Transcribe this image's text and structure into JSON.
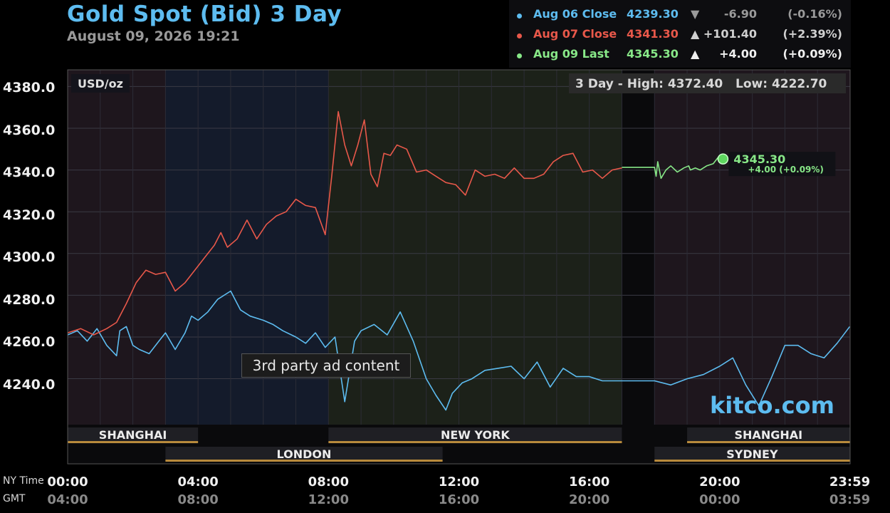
{
  "header": {
    "title": "Gold Spot (Bid) 3 Day",
    "datetime": "August 09, 2026 19:21"
  },
  "legend": [
    {
      "label": "Aug 06 Close",
      "value": "4239.30",
      "arrow": "▼",
      "change": "-6.90",
      "pct": "(-0.16%)",
      "color": "#5dbcf0"
    },
    {
      "label": "Aug 07 Close",
      "value": "4341.30",
      "arrow": "▲",
      "change": "+101.40",
      "pct": "(+2.39%)",
      "color": "#e8584a"
    },
    {
      "label": "Aug 09 Last",
      "value": "4345.30",
      "arrow": "▲",
      "change": "+4.00",
      "pct": "(+0.09%)",
      "color": "#88e888"
    }
  ],
  "overlays": {
    "unit": "USD/oz",
    "hilo": "3 Day - High: 4372.40   Low: 4222.70",
    "last_price": "4345.30",
    "last_change": "+4.00 (+0.09%)",
    "ad_text": "3rd party ad content",
    "watermark": "kitco.com"
  },
  "axis": {
    "ny_label": "NY Time",
    "gmt_label": "GMT",
    "ny_ticks": [
      "00:00",
      "04:00",
      "08:00",
      "12:00",
      "16:00",
      "20:00",
      "23:59"
    ],
    "gmt_ticks": [
      "04:00",
      "08:00",
      "12:00",
      "16:00",
      "20:00",
      "00:00",
      "03:59"
    ],
    "y_ticks": [
      "4380.0",
      "4360.0",
      "4340.0",
      "4320.0",
      "4300.0",
      "4280.0",
      "4260.0",
      "4240.0"
    ]
  },
  "sessions": {
    "top": [
      {
        "name": "SHANGHAI",
        "start": 0.0,
        "end": 4.0
      },
      {
        "name": "NEW YORK",
        "start": 8.0,
        "end": 17.0
      },
      {
        "name": "SHANGHAI",
        "start": 19.0,
        "end": 23.99
      }
    ],
    "bottom": [
      {
        "name": "LONDON",
        "start": 3.0,
        "end": 11.5
      },
      {
        "name": "SYDNEY",
        "start": 18.0,
        "end": 23.99
      }
    ]
  },
  "chart_data": {
    "type": "line",
    "title": "Gold Spot (Bid) 3 Day",
    "xlabel": "NY Time",
    "ylabel": "USD/oz",
    "ylim": [
      4218,
      4388
    ],
    "xlim": [
      0,
      24
    ],
    "grid": true,
    "series": [
      {
        "name": "Aug 06",
        "color": "#5dbcf0",
        "x": [
          0,
          0.3,
          0.6,
          0.9,
          1.2,
          1.5,
          1.6,
          1.8,
          2.0,
          2.2,
          2.5,
          2.8,
          3.0,
          3.3,
          3.6,
          3.8,
          4.0,
          4.3,
          4.6,
          5.0,
          5.3,
          5.6,
          6.0,
          6.3,
          6.6,
          7.0,
          7.3,
          7.6,
          7.9,
          8.2,
          8.5,
          8.8,
          9.0,
          9.4,
          9.8,
          10.2,
          10.6,
          11.0,
          11.3,
          11.6,
          11.8,
          12.1,
          12.4,
          12.8,
          13.2,
          13.6,
          14.0,
          14.4,
          14.8,
          15.2,
          15.6,
          16.0,
          16.4,
          16.8,
          17.0,
          18.0,
          18.5,
          19.0,
          19.5,
          20.0,
          20.4,
          20.8,
          21.2,
          21.6,
          22.0,
          22.4,
          22.8,
          23.2,
          23.6,
          23.99
        ],
        "y": [
          4261,
          4263,
          4258,
          4264,
          4256,
          4251,
          4263,
          4265,
          4256,
          4254,
          4252,
          4258,
          4262,
          4254,
          4262,
          4270,
          4268,
          4272,
          4278,
          4282,
          4273,
          4270,
          4268,
          4266,
          4263,
          4260,
          4257,
          4262,
          4255,
          4260,
          4229,
          4258,
          4263,
          4266,
          4261,
          4272,
          4258,
          4240,
          4232,
          4225,
          4233,
          4238,
          4240,
          4244,
          4245,
          4246,
          4240,
          4248,
          4236,
          4245,
          4241,
          4241,
          4239,
          4239,
          4239,
          4239,
          4237,
          4240,
          4242,
          4246,
          4250,
          4237,
          4227,
          4241,
          4256,
          4256,
          4252,
          4250,
          4257,
          4265
        ]
      },
      {
        "name": "Aug 07",
        "color": "#e8584a",
        "x": [
          0,
          0.4,
          0.8,
          1.2,
          1.5,
          1.8,
          2.1,
          2.4,
          2.7,
          3.0,
          3.3,
          3.6,
          3.9,
          4.2,
          4.5,
          4.7,
          4.9,
          5.2,
          5.5,
          5.8,
          6.1,
          6.4,
          6.7,
          7.0,
          7.3,
          7.6,
          7.9,
          8.1,
          8.3,
          8.5,
          8.7,
          8.9,
          9.1,
          9.3,
          9.5,
          9.7,
          9.9,
          10.1,
          10.4,
          10.7,
          11.0,
          11.3,
          11.6,
          11.9,
          12.2,
          12.5,
          12.8,
          13.1,
          13.4,
          13.7,
          14.0,
          14.3,
          14.6,
          14.9,
          15.2,
          15.5,
          15.8,
          16.1,
          16.4,
          16.7,
          17.0
        ],
        "y": [
          4262,
          4264,
          4261,
          4264,
          4267,
          4276,
          4286,
          4292,
          4290,
          4291,
          4282,
          4286,
          4292,
          4298,
          4304,
          4310,
          4303,
          4307,
          4316,
          4307,
          4314,
          4318,
          4320,
          4326,
          4323,
          4322,
          4309,
          4337,
          4368,
          4352,
          4342,
          4352,
          4364,
          4338,
          4332,
          4348,
          4347,
          4352,
          4350,
          4339,
          4340,
          4337,
          4334,
          4333,
          4328,
          4340,
          4337,
          4338,
          4336,
          4341,
          4336,
          4336,
          4338,
          4344,
          4347,
          4348,
          4339,
          4340,
          4336,
          4340,
          4341
        ]
      },
      {
        "name": "Aug 09",
        "color": "#88e888",
        "x": [
          17.0,
          18.0,
          18.05,
          18.1,
          18.2,
          18.35,
          18.5,
          18.7,
          18.9,
          19.05,
          19.1,
          19.25,
          19.4,
          19.6,
          19.8,
          19.95,
          20.1
        ],
        "y": [
          4341.3,
          4341.3,
          4337,
          4344,
          4336,
          4340,
          4342,
          4339,
          4341,
          4342,
          4340,
          4341,
          4340,
          4342,
          4343,
          4346,
          4345.3
        ]
      }
    ]
  }
}
